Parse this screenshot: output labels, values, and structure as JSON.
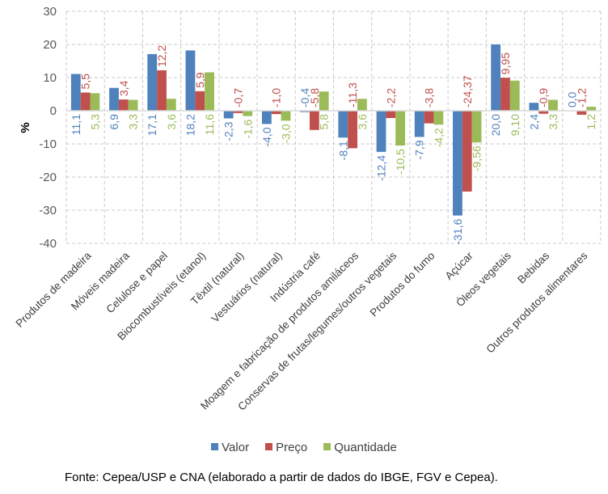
{
  "chart_data": {
    "type": "bar",
    "title": "",
    "xlabel": "",
    "ylabel": "%",
    "ylim": [
      -40,
      30
    ],
    "yticks": [
      30,
      20,
      10,
      0,
      -10,
      -20,
      -30,
      -40
    ],
    "grid": true,
    "legend_position": "bottom",
    "categories": [
      "Produtos de madeira",
      "Móveis madeira",
      "Celulose e papel",
      "Biocombustíveis (etanol)",
      "Têxtil (natural)",
      "Vestuários (natural)",
      "Indústria café",
      "Moagem e fabricação de produtos amiláceos",
      "Conservas de frutas/legumes/outros vegetais",
      "Produtos do fumo",
      "Açúcar",
      "Óleos vegetais",
      "Bebidas",
      "Outros produtos alimentares"
    ],
    "series": [
      {
        "name": "Valor",
        "color": "#4F81BD",
        "values": [
          11.1,
          6.9,
          17.1,
          18.2,
          -2.3,
          -4.0,
          -0.4,
          -8.1,
          -12.4,
          -7.9,
          -31.6,
          20.0,
          2.4,
          0.0
        ],
        "labels": [
          "11,1",
          "6,9",
          "17,1",
          "18,2",
          "-2,3",
          "-4,0",
          "-0,4",
          "-8,1",
          "-12,4",
          "-7,9",
          "-31,6",
          "20,0",
          "2,4",
          "0,0"
        ]
      },
      {
        "name": "Preço",
        "color": "#C0504D",
        "values": [
          5.5,
          3.4,
          12.2,
          5.9,
          -0.7,
          -1.0,
          -5.8,
          -11.3,
          -2.2,
          -3.8,
          -24.37,
          9.95,
          -0.9,
          -1.2
        ],
        "labels": [
          "5,5",
          "3,4",
          "12,2",
          "5,9",
          "-0,7",
          "-1,0",
          "-5,8",
          "-11,3",
          "-2,2",
          "-3,8",
          "-24,37",
          "9,95",
          "-0,9",
          "-1,2"
        ]
      },
      {
        "name": "Quantidade",
        "color": "#9BBB59",
        "values": [
          5.3,
          3.3,
          3.6,
          11.6,
          -1.6,
          -3.0,
          5.8,
          3.6,
          -10.5,
          -4.2,
          -9.56,
          9.1,
          3.3,
          1.2
        ],
        "labels": [
          "5,3",
          "3,3",
          "3,6",
          "11,6",
          "-1,6",
          "-3,0",
          "5,8",
          "3,6",
          "-10,5",
          "-4,2",
          "-9,56",
          "9,10",
          "3,3",
          "1,2"
        ]
      }
    ]
  },
  "source_note": "Fonte: Cepea/USP e CNA (elaborado a partir de dados do IBGE, FGV e Cepea)."
}
